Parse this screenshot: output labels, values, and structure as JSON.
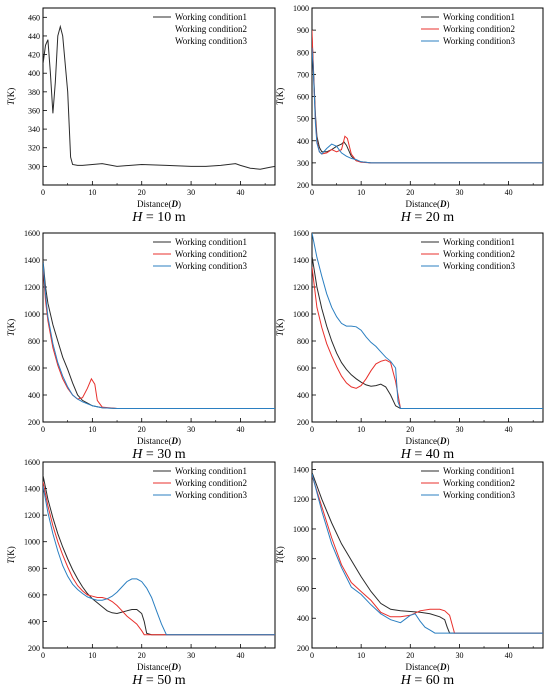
{
  "legend_labels": [
    "Working condition1",
    "Working condition2",
    "Working condition3"
  ],
  "series_colors": [
    "#2b2b2b",
    "#e8302c",
    "#2b7fc1"
  ],
  "chart_data": [
    {
      "type": "line",
      "xlabel": "Distance(D)",
      "ylabel": "T(K)",
      "caption": "H = 10 m",
      "xlim": [
        0,
        47
      ],
      "ylim": [
        280,
        470
      ],
      "xticks": [
        0,
        10,
        20,
        30,
        40
      ],
      "yticks": [
        300,
        320,
        340,
        360,
        380,
        400,
        420,
        440,
        460
      ],
      "legend": "top-right",
      "grid": false,
      "series": [
        {
          "x": [
            0,
            0.5,
            1,
            1.5,
            2,
            2.5,
            3,
            3.5,
            4,
            5,
            5.6,
            6,
            7,
            8,
            10,
            12,
            15,
            20,
            25,
            30,
            33,
            36,
            39,
            40,
            42,
            44,
            46,
            47
          ],
          "y": [
            410,
            430,
            436,
            400,
            357,
            390,
            440,
            450,
            440,
            380,
            310,
            302,
            301,
            301,
            302,
            303,
            300,
            302,
            301,
            300,
            300,
            301,
            303,
            301,
            298,
            297,
            299,
            300
          ]
        }
      ]
    },
    {
      "type": "line",
      "xlabel": "Distance(D)",
      "ylabel": "T(K)",
      "caption": "H = 20 m",
      "xlim": [
        0,
        47
      ],
      "ylim": [
        200,
        1000
      ],
      "xticks": [
        0,
        10,
        20,
        30,
        40
      ],
      "yticks": [
        200,
        300,
        400,
        500,
        600,
        700,
        800,
        900,
        1000
      ],
      "legend": "top-right",
      "grid": false,
      "series": [
        {
          "x": [
            0,
            0.3,
            0.7,
            1,
            1.5,
            2,
            3,
            4,
            5,
            6,
            6.5,
            7,
            8,
            9,
            10,
            12,
            15,
            20,
            30,
            40,
            47
          ],
          "y": [
            870,
            720,
            520,
            420,
            370,
            350,
            350,
            360,
            375,
            385,
            395,
            380,
            330,
            310,
            305,
            300,
            300,
            300,
            300,
            300,
            300
          ]
        },
        {
          "x": [
            0,
            0.3,
            0.7,
            1,
            1.5,
            2,
            3,
            4,
            5,
            6,
            6.7,
            7.2,
            8,
            9,
            10,
            12,
            15,
            20,
            30,
            40,
            47
          ],
          "y": [
            900,
            700,
            500,
            400,
            350,
            340,
            345,
            360,
            350,
            360,
            420,
            410,
            340,
            310,
            303,
            300,
            300,
            300,
            300,
            300,
            300
          ]
        },
        {
          "x": [
            0,
            0.3,
            0.7,
            1,
            1.5,
            2,
            3,
            4,
            5,
            6,
            7,
            8,
            9,
            10,
            12,
            15,
            20,
            30,
            40,
            47
          ],
          "y": [
            820,
            700,
            480,
            390,
            350,
            340,
            365,
            385,
            375,
            345,
            330,
            320,
            315,
            305,
            300,
            300,
            300,
            300,
            300,
            300
          ]
        }
      ]
    },
    {
      "type": "line",
      "xlabel": "Distance(D)",
      "ylabel": "T(K)",
      "caption": "H = 30 m",
      "xlim": [
        0,
        47
      ],
      "ylim": [
        200,
        1600
      ],
      "xticks": [
        0,
        10,
        20,
        30,
        40
      ],
      "yticks": [
        200,
        400,
        600,
        800,
        1000,
        1200,
        1400,
        1600
      ],
      "legend": "top-right",
      "grid": false,
      "series": [
        {
          "x": [
            0,
            0.5,
            1,
            2,
            3,
            4,
            5,
            6,
            7,
            8,
            9,
            10,
            12,
            15,
            20,
            30,
            40,
            47
          ],
          "y": [
            1400,
            1200,
            1080,
            920,
            800,
            680,
            590,
            490,
            400,
            360,
            340,
            320,
            305,
            300,
            300,
            300,
            300,
            300
          ]
        },
        {
          "x": [
            0,
            0.5,
            1,
            2,
            3,
            4,
            5,
            6,
            7,
            8,
            9,
            9.8,
            10.5,
            11,
            12,
            15,
            20,
            30,
            40,
            47
          ],
          "y": [
            1350,
            1100,
            950,
            750,
            620,
            520,
            450,
            400,
            370,
            380,
            450,
            520,
            480,
            360,
            310,
            300,
            300,
            300,
            300,
            300
          ]
        },
        {
          "x": [
            0,
            0.5,
            1,
            2,
            3,
            4,
            5,
            6,
            7,
            8,
            10,
            12,
            15,
            20,
            30,
            40,
            47
          ],
          "y": [
            1380,
            1150,
            980,
            780,
            640,
            540,
            460,
            400,
            370,
            350,
            320,
            305,
            300,
            300,
            300,
            300,
            300
          ]
        }
      ]
    },
    {
      "type": "line",
      "xlabel": "Distance(D)",
      "ylabel": "T(K)",
      "caption": "H = 40 m",
      "xlim": [
        0,
        47
      ],
      "ylim": [
        200,
        1600
      ],
      "xticks": [
        0,
        10,
        20,
        30,
        40
      ],
      "yticks": [
        200,
        400,
        600,
        800,
        1000,
        1200,
        1400,
        1600
      ],
      "legend": "top-right",
      "grid": false,
      "series": [
        {
          "x": [
            0,
            1,
            2,
            3,
            4,
            5,
            6,
            7,
            8,
            9,
            10,
            11,
            12,
            13,
            14,
            15,
            16,
            17,
            18,
            20,
            30,
            40,
            47
          ],
          "y": [
            1430,
            1200,
            1040,
            910,
            800,
            710,
            640,
            590,
            550,
            520,
            495,
            475,
            465,
            470,
            480,
            460,
            400,
            320,
            300,
            300,
            300,
            300,
            300
          ]
        },
        {
          "x": [
            0,
            1,
            2,
            3,
            4,
            5,
            6,
            7,
            8,
            9,
            10,
            11,
            12,
            13,
            14,
            15,
            16,
            17,
            18,
            20,
            30,
            40,
            47
          ],
          "y": [
            1350,
            1050,
            900,
            780,
            690,
            610,
            540,
            490,
            460,
            450,
            470,
            520,
            580,
            630,
            650,
            660,
            640,
            500,
            300,
            300,
            300,
            300,
            300
          ]
        },
        {
          "x": [
            0,
            1,
            2,
            3,
            4,
            5,
            6,
            7,
            8,
            9,
            10,
            11,
            12,
            13,
            14,
            15,
            16,
            17,
            17.5,
            18,
            20,
            30,
            40,
            47
          ],
          "y": [
            1600,
            1420,
            1280,
            1150,
            1050,
            980,
            930,
            910,
            910,
            905,
            880,
            830,
            790,
            760,
            720,
            680,
            650,
            600,
            350,
            300,
            300,
            300,
            300,
            300
          ]
        }
      ]
    },
    {
      "type": "line",
      "xlabel": "Distance(D)",
      "ylabel": "T(K)",
      "caption": "H = 50 m",
      "xlim": [
        0,
        47
      ],
      "ylim": [
        200,
        1600
      ],
      "xticks": [
        0,
        10,
        20,
        30,
        40
      ],
      "yticks": [
        200,
        400,
        600,
        800,
        1000,
        1200,
        1400,
        1600
      ],
      "legend": "top-right",
      "grid": false,
      "series": [
        {
          "x": [
            0,
            1,
            2,
            3,
            4,
            5,
            6,
            7,
            8,
            9,
            10,
            11,
            12,
            13,
            14,
            15,
            16,
            17,
            18,
            19,
            20,
            20.5,
            21,
            22,
            25,
            30,
            40,
            47
          ],
          "y": [
            1500,
            1320,
            1180,
            1060,
            960,
            870,
            790,
            720,
            660,
            610,
            570,
            540,
            510,
            480,
            465,
            460,
            470,
            480,
            490,
            490,
            460,
            400,
            310,
            300,
            300,
            300,
            300,
            300
          ]
        },
        {
          "x": [
            0,
            1,
            2,
            3,
            4,
            5,
            6,
            7,
            8,
            9,
            10,
            11,
            12,
            13,
            14,
            15,
            16,
            17,
            18,
            19,
            20,
            20.5,
            21,
            22,
            25,
            30,
            40,
            47
          ],
          "y": [
            1450,
            1270,
            1120,
            1000,
            900,
            810,
            730,
            670,
            630,
            600,
            590,
            580,
            580,
            570,
            550,
            520,
            480,
            440,
            410,
            380,
            330,
            300,
            300,
            300,
            300,
            300,
            300,
            300
          ]
        },
        {
          "x": [
            0,
            1,
            2,
            3,
            4,
            5,
            6,
            7,
            8,
            9,
            10,
            11,
            12,
            13,
            14,
            15,
            16,
            17,
            18,
            19,
            20,
            21,
            22,
            23,
            24,
            25,
            30,
            40,
            47
          ],
          "y": [
            1420,
            1220,
            1060,
            930,
            820,
            740,
            680,
            640,
            610,
            585,
            570,
            560,
            560,
            570,
            590,
            620,
            660,
            700,
            720,
            720,
            700,
            650,
            580,
            480,
            380,
            300,
            300,
            300,
            300
          ]
        }
      ]
    },
    {
      "type": "line",
      "xlabel": "Distance(D)",
      "ylabel": "T(K)",
      "caption": "H = 60 m",
      "xlim": [
        0,
        47
      ],
      "ylim": [
        200,
        1450
      ],
      "xticks": [
        0,
        10,
        20,
        30,
        40
      ],
      "yticks": [
        200,
        400,
        600,
        800,
        1000,
        1200,
        1400
      ],
      "legend": "top-right",
      "grid": false,
      "series": [
        {
          "x": [
            0,
            2,
            4,
            6,
            8,
            10,
            12,
            14,
            16,
            18,
            20,
            22,
            24,
            26,
            27,
            27.5,
            28,
            30,
            40,
            47
          ],
          "y": [
            1380,
            1200,
            1040,
            900,
            790,
            680,
            580,
            500,
            460,
            450,
            445,
            440,
            430,
            410,
            390,
            340,
            300,
            300,
            300,
            300
          ]
        },
        {
          "x": [
            0,
            2,
            4,
            6,
            8,
            10,
            12,
            14,
            16,
            18,
            20,
            22,
            24,
            26,
            27,
            28,
            29,
            30,
            40,
            47
          ],
          "y": [
            1360,
            1150,
            940,
            760,
            640,
            580,
            520,
            440,
            410,
            410,
            420,
            450,
            460,
            460,
            450,
            420,
            300,
            300,
            300,
            300
          ]
        },
        {
          "x": [
            0,
            2,
            4,
            6,
            8,
            10,
            12,
            14,
            16,
            18,
            20,
            21,
            22,
            23,
            24,
            25,
            26,
            30,
            40,
            47
          ],
          "y": [
            1370,
            1120,
            900,
            740,
            610,
            560,
            490,
            430,
            390,
            370,
            420,
            430,
            380,
            340,
            320,
            300,
            300,
            300,
            300,
            300
          ]
        }
      ]
    }
  ]
}
